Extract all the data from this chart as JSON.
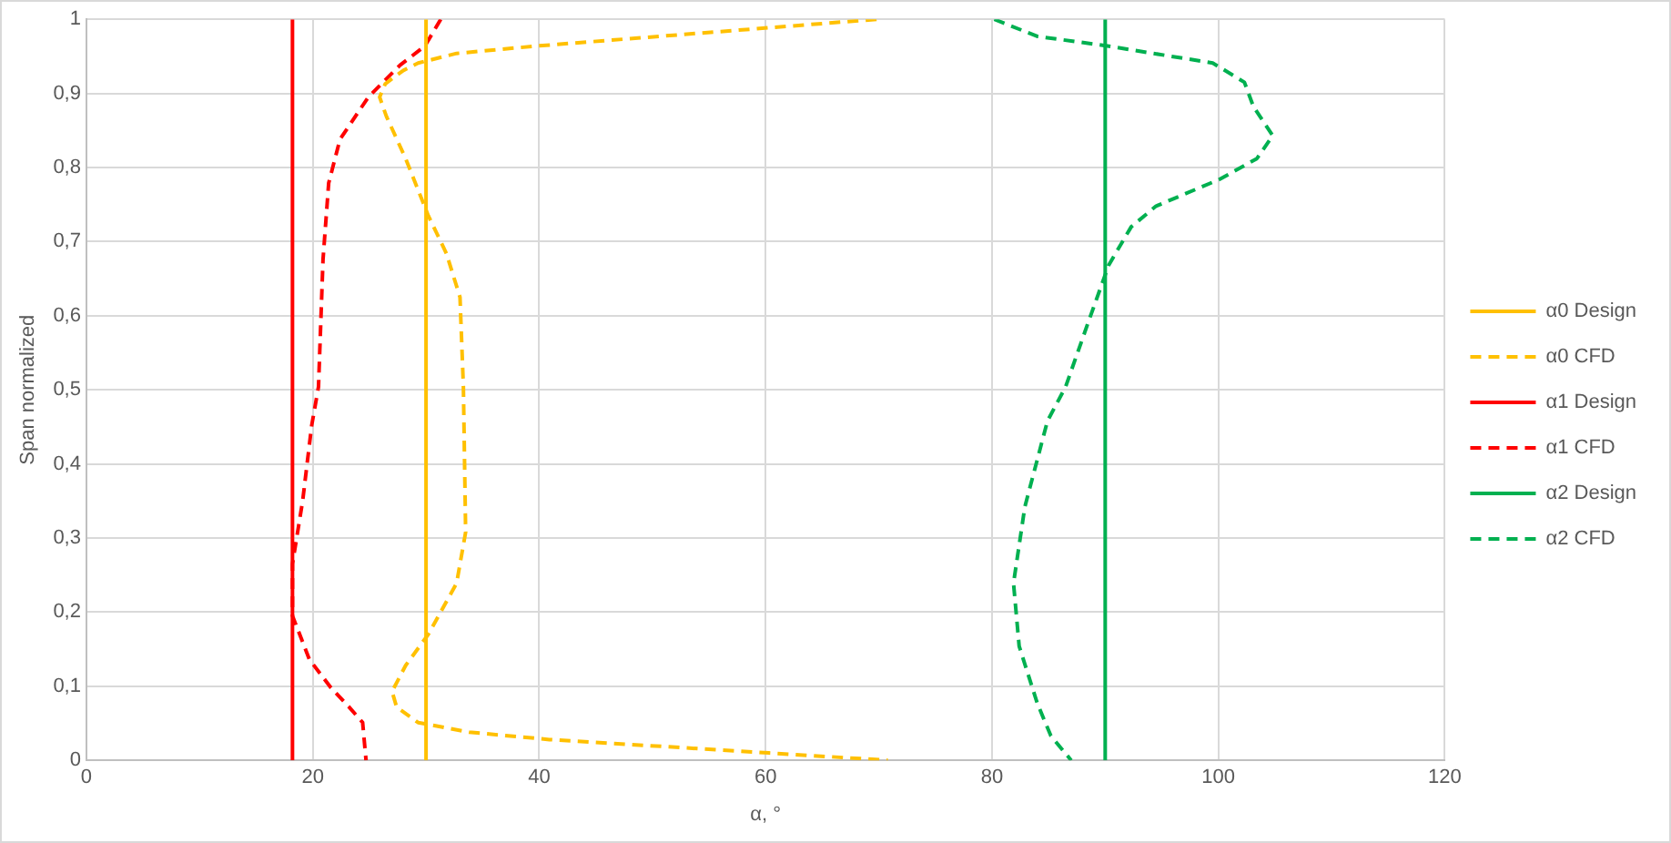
{
  "chart_data": {
    "type": "line",
    "xlabel": "α, °",
    "ylabel": "Span normalized",
    "xlim": [
      0,
      120
    ],
    "xticks": [
      0,
      20,
      40,
      60,
      80,
      100,
      120
    ],
    "ylim": [
      0,
      1
    ],
    "yticks": [
      0,
      {
        "value": 0.1,
        "label": "0,1"
      },
      {
        "value": 0.2,
        "label": "0,2"
      },
      {
        "value": 0.3,
        "label": "0,3"
      },
      {
        "value": 0.4,
        "label": "0,4"
      },
      {
        "value": 0.5,
        "label": "0,5"
      },
      {
        "value": 0.6,
        "label": "0,6"
      },
      {
        "value": 0.7,
        "label": "0,7"
      },
      {
        "value": 0.8,
        "label": "0,8"
      },
      {
        "value": 0.9,
        "label": "0,9"
      },
      1
    ],
    "grid": true,
    "legend": "right",
    "marker": "none",
    "series": [
      {
        "name": "α0 Design",
        "color": "#ffc000",
        "line_style": "solid",
        "x": [
          30,
          30
        ],
        "values": [
          0,
          1
        ]
      },
      {
        "name": "α0 CFD",
        "color": "#ffc000",
        "line_style": "dashed",
        "x": [
          69.8,
          39.8,
          32.7,
          29.3,
          28.0,
          26.4,
          25.9,
          26.5,
          28.2,
          30.2,
          31.8,
          33.0,
          33.3,
          33.5,
          32.7,
          30.2,
          28.2,
          27.0,
          27.4,
          29.3,
          33.8,
          40.9,
          60.3,
          70.8
        ],
        "values": [
          1,
          0.964,
          0.954,
          0.941,
          0.931,
          0.913,
          0.895,
          0.869,
          0.812,
          0.735,
          0.684,
          0.625,
          0.504,
          0.308,
          0.239,
          0.17,
          0.128,
          0.093,
          0.072,
          0.051,
          0.038,
          0.028,
          0.01,
          0
        ]
      },
      {
        "name": "α1 Design",
        "color": "#ff0000",
        "line_style": "solid",
        "x": [
          18.2,
          18.2
        ],
        "values": [
          0,
          1
        ]
      },
      {
        "name": "α1 CFD",
        "color": "#ff0000",
        "line_style": "dashed",
        "x": [
          31.3,
          29.9,
          27.7,
          24.9,
          22.4,
          21.4,
          20.9,
          20.5,
          19.9,
          19.1,
          18.2,
          18.2,
          19.7,
          21.6,
          23.2,
          24.4,
          24.7
        ],
        "values": [
          1,
          0.964,
          0.938,
          0.895,
          0.838,
          0.779,
          0.676,
          0.504,
          0.452,
          0.35,
          0.265,
          0.195,
          0.136,
          0.098,
          0.072,
          0.051,
          0
        ]
      },
      {
        "name": "α2 Design",
        "color": "#00b050",
        "line_style": "solid",
        "x": [
          90,
          90
        ],
        "values": [
          0,
          1
        ]
      },
      {
        "name": "α2 CFD",
        "color": "#00b050",
        "line_style": "dashed",
        "x": [
          80.2,
          84.0,
          90.2,
          99.5,
          102.3,
          103.1,
          104.8,
          103.4,
          100.1,
          94.5,
          92.3,
          90.3,
          88.5,
          86.5,
          84.9,
          82.9,
          81.9,
          82.4,
          84.0,
          85.2,
          87.0
        ],
        "values": [
          1,
          0.977,
          0.964,
          0.941,
          0.915,
          0.882,
          0.843,
          0.812,
          0.784,
          0.748,
          0.72,
          0.668,
          0.591,
          0.504,
          0.458,
          0.342,
          0.239,
          0.154,
          0.077,
          0.033,
          0
        ]
      }
    ]
  }
}
